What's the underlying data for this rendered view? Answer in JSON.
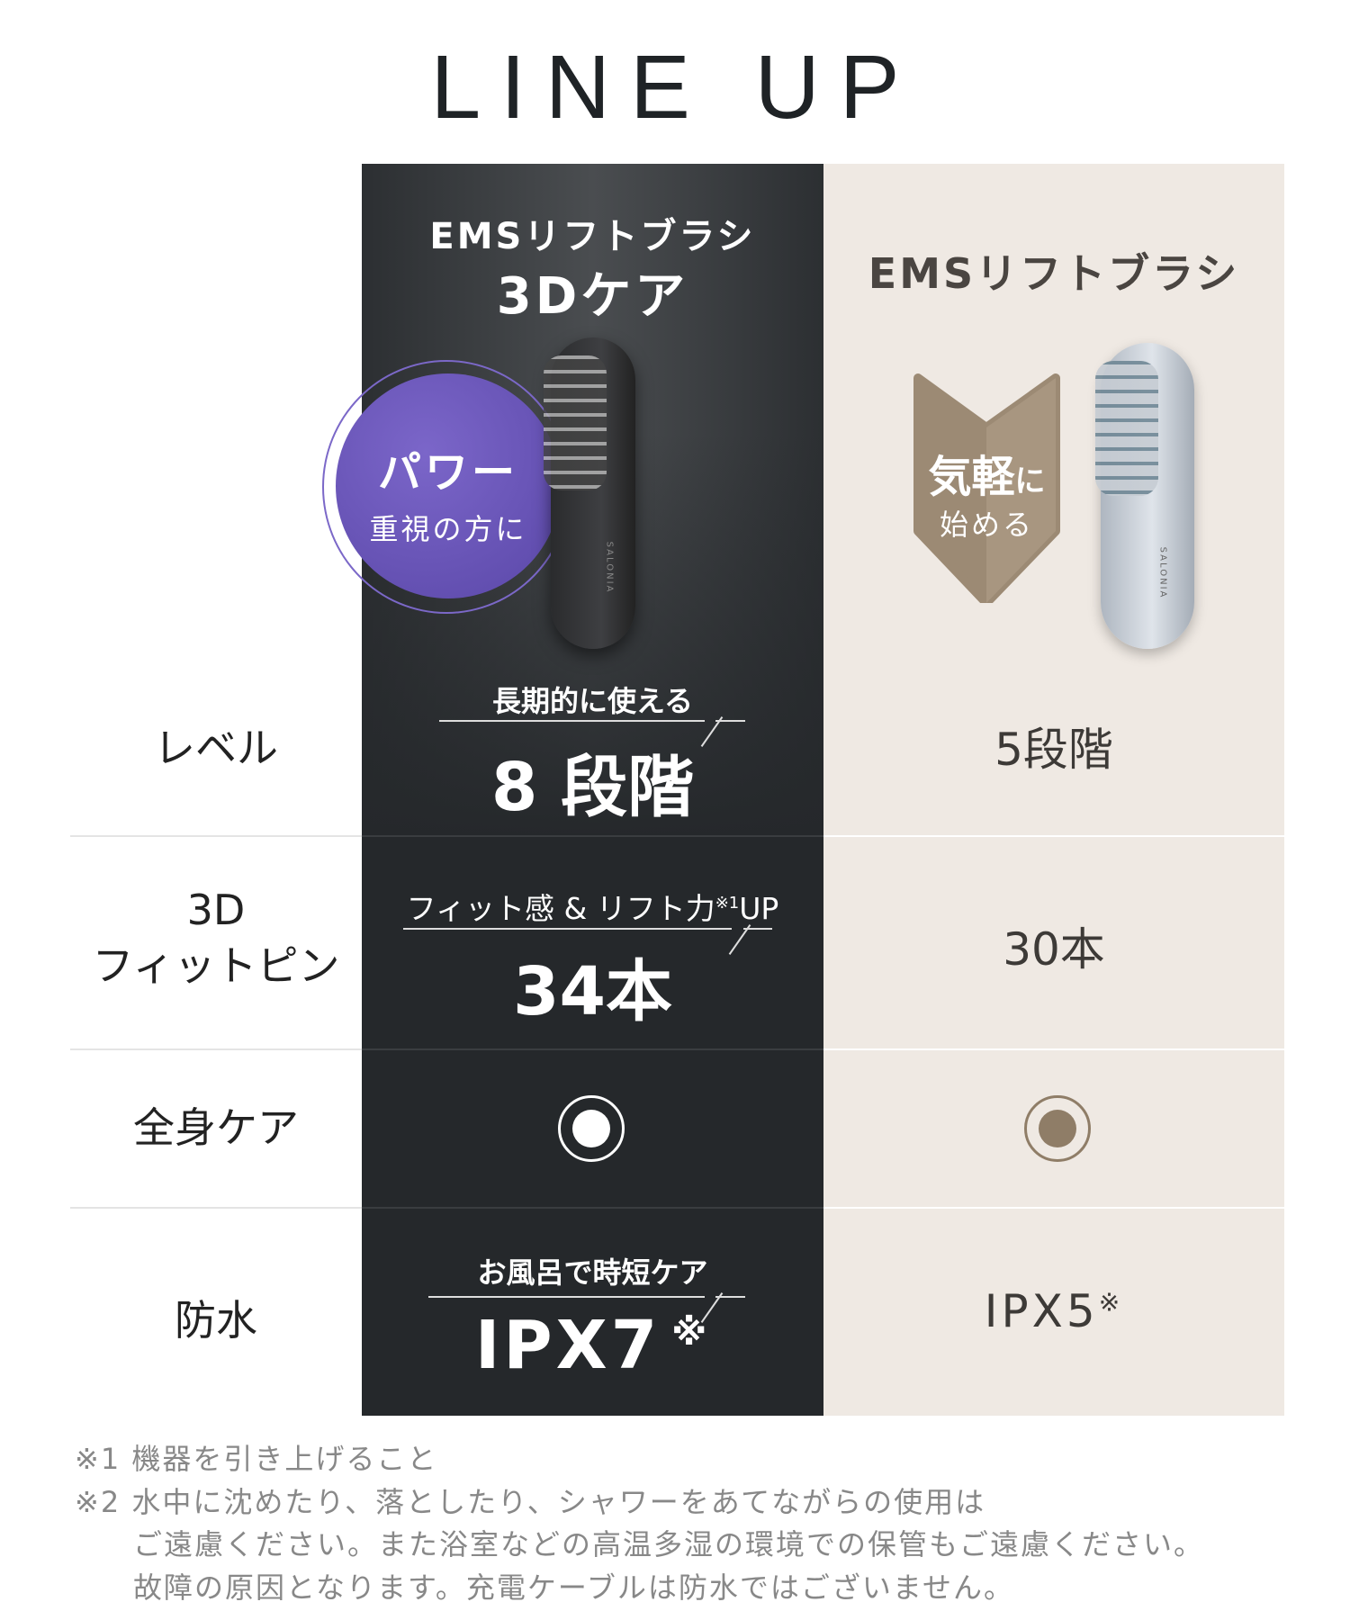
{
  "title": "LINE UP",
  "products": [
    {
      "name_line1": "EMSリフトブラシ",
      "name_line2": "3Dケア",
      "badge_main": "パワー",
      "badge_sub": "重視の方に",
      "brand": "SALONIA",
      "badge_color": "#6a55b8"
    },
    {
      "name_line1": "EMSリフトブラシ",
      "badge_main": "気軽",
      "badge_main_suffix": "に",
      "badge_sub": "始める",
      "brand": "SALONIA",
      "badge_color": "#9c8a74"
    }
  ],
  "rows": [
    {
      "label": "レベル",
      "p1_caption": "長期的に使える",
      "p1_value": "8 段階",
      "p2_value": "5段階"
    },
    {
      "label_line1": "3D",
      "label_line2": "フィットピン",
      "p1_caption": "フィット感 & リフト力",
      "p1_caption_note": "※1",
      "p1_caption_suffix": "UP",
      "p1_value": "34本",
      "p2_value": "30本"
    },
    {
      "label": "全身ケア",
      "p1_value_icon": "double-circle-icon",
      "p2_value_icon": "double-circle-icon"
    },
    {
      "label": "防水",
      "p1_caption": "お風呂で時短ケア",
      "p1_value": "IPX7",
      "p1_note": "※",
      "p2_value": "IPX5",
      "p2_note": "※"
    }
  ],
  "footnotes": [
    "※1 機器を引き上げること",
    "※2 水中に沈めたり、落としたり、シャワーをあてながらの使用は",
    "ご遠慮ください。また浴室などの高温多湿の環境での保管もご遠慮ください。",
    "故障の原因となります。充電ケーブルは防水ではございません。"
  ],
  "colors": {
    "dark": "#25282b",
    "light": "#efe9e3",
    "accent_brown": "#8f7d67"
  }
}
